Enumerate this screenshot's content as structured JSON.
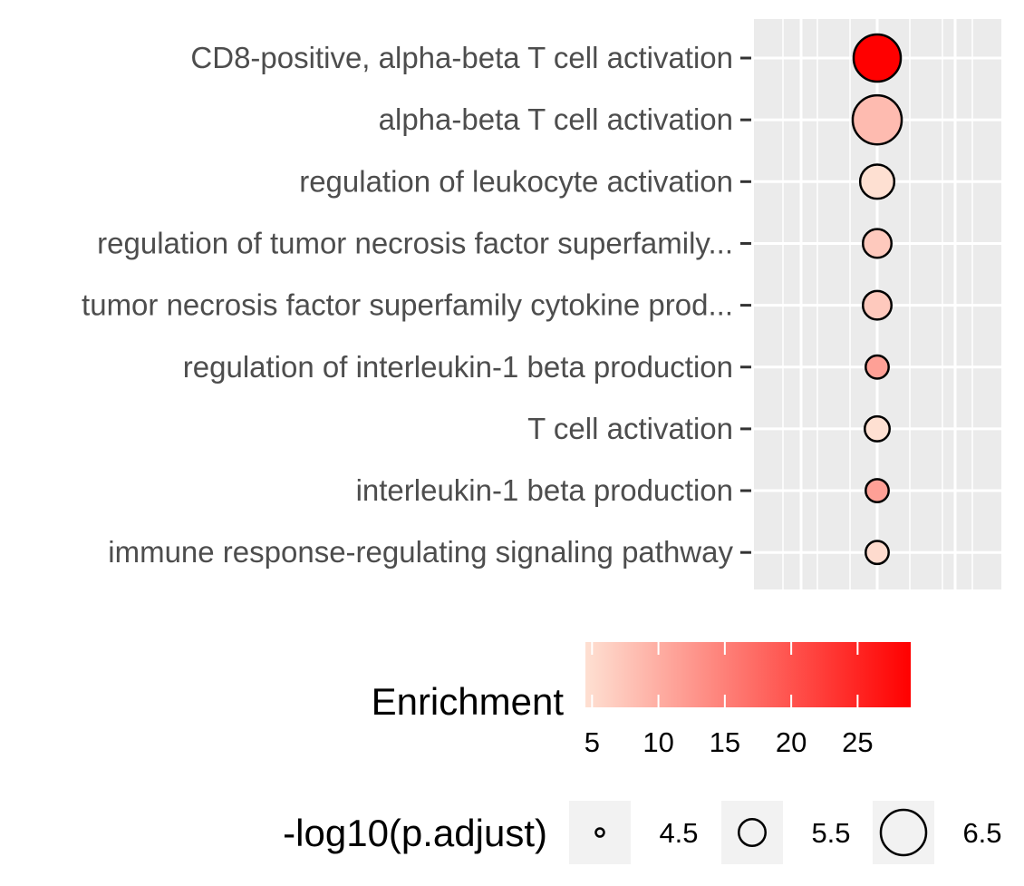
{
  "chart_data": {
    "type": "scatter",
    "subtype": "dot plot",
    "x": null,
    "xlabel": "",
    "ylabel": "",
    "grid": true,
    "categories": [
      "CD8-positive, alpha-beta T cell activation",
      "alpha-beta T cell activation",
      "regulation of leukocyte activation",
      "regulation of tumor necrosis factor superfamily...",
      "tumor necrosis factor superfamily cytokine prod...",
      "regulation of interleukin-1 beta production",
      "T cell activation",
      "interleukin-1 beta production",
      "immune response-regulating signaling pathway"
    ],
    "series": [
      {
        "enrichment": [
          29,
          8.5,
          4.5,
          7,
          7,
          11.5,
          4.5,
          11.5,
          5
        ],
        "neg_log10_padj": [
          6.6,
          6.7,
          5.9,
          5.6,
          5.6,
          5.3,
          5.4,
          5.3,
          5.3
        ]
      }
    ],
    "color_legend": {
      "title": "Enrichment",
      "ticks": [
        "5",
        "10",
        "15",
        "20",
        "25"
      ],
      "tick_values": [
        5,
        10,
        15,
        20,
        25
      ],
      "range": [
        4.5,
        29
      ],
      "low_color": "#fee0d2",
      "high_color": "#ff0000"
    },
    "size_legend": {
      "title": "-log10(p.adjust)",
      "labels": [
        "4.5",
        "5.5",
        "6.5"
      ],
      "values": [
        4.5,
        5.5,
        6.5
      ]
    },
    "legend_position": "bottom"
  }
}
